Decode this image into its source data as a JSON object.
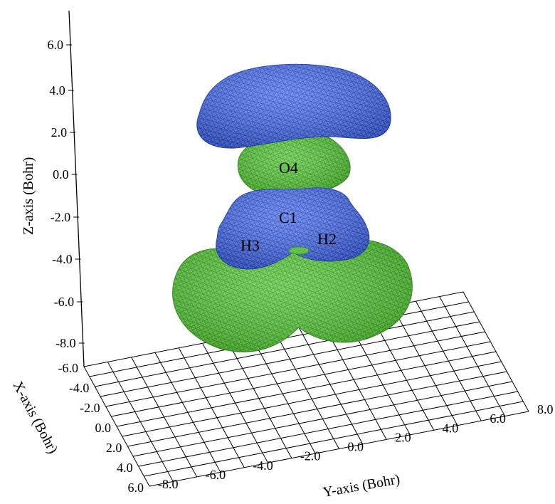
{
  "axes": {
    "z": {
      "title": "Z-axis (Bohr)",
      "ticks": [
        "6.0",
        "4.0",
        "2.0",
        "0.0",
        "-2.0",
        "-4.0",
        "-6.0",
        "-8.0"
      ]
    },
    "x": {
      "title": "X-axis (Bohr)",
      "ticks": [
        "-6.0",
        "-4.0",
        "-2.0",
        "0.0",
        "2.0",
        "4.0",
        "6.0"
      ]
    },
    "y": {
      "title": "Y-axis (Bohr)",
      "ticks": [
        "-8.0",
        "-6.0",
        "-4.0",
        "-2.0",
        "0.0",
        "2.0",
        "4.0",
        "6.0",
        "8.0"
      ]
    }
  },
  "atoms": {
    "o4": "O4",
    "c1": "C1",
    "h2": "H2",
    "h3": "H3"
  },
  "colors": {
    "positive_lobe": "#5b8f3a",
    "positive_fill": "#6bd84a",
    "negative_lobe": "#3f5fd0",
    "negative_fill": "#6f8ff0"
  }
}
